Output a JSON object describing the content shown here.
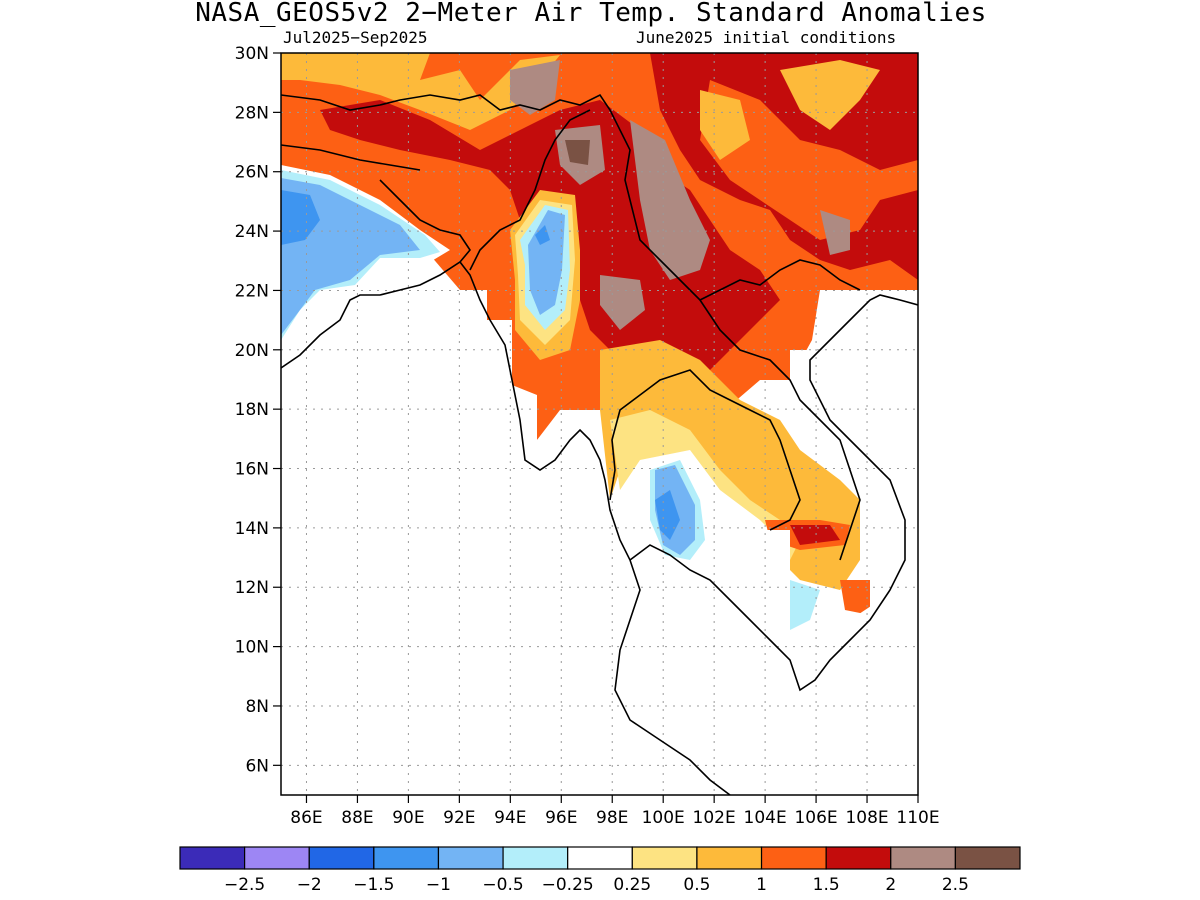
{
  "title": "NASA_GEOS5v2 2−Meter Air Temp. Standard Anomalies",
  "period": "Jul2025−Sep2025",
  "init": "June2025 initial conditions",
  "axes": {
    "lat_labels": [
      "30N",
      "28N",
      "26N",
      "24N",
      "22N",
      "20N",
      "18N",
      "16N",
      "14N",
      "12N",
      "10N",
      "8N",
      "6N"
    ],
    "lon_labels": [
      "86E",
      "88E",
      "90E",
      "92E",
      "94E",
      "96E",
      "98E",
      "100E",
      "102E",
      "104E",
      "106E",
      "108E",
      "110E"
    ],
    "lat_range": [
      5,
      30
    ],
    "lon_range": [
      85,
      110
    ]
  },
  "colorbar": {
    "colors": [
      "#3b2bb8",
      "#9d86f4",
      "#2167e6",
      "#3e95f0",
      "#73b4f4",
      "#b3eefa",
      "#ffffff",
      "#fde382",
      "#fdba3a",
      "#fd6014",
      "#c30c0c",
      "#ae8a82",
      "#7a5244"
    ],
    "labels": [
      "−2.5",
      "−2",
      "−1.5",
      "−1",
      "−0.5",
      "−0.25",
      "0.25",
      "0.5",
      "1",
      "1.5",
      "2",
      "2.5"
    ]
  }
}
